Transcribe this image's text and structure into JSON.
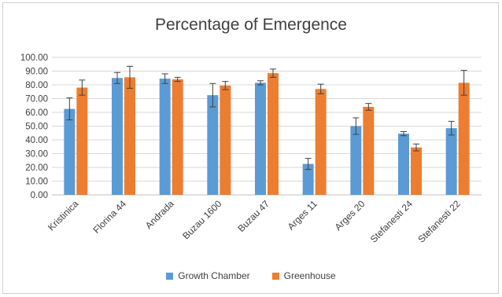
{
  "chart_data": {
    "type": "bar",
    "title": "Percentage of Emergence",
    "categories": [
      "Kristinica",
      "Florina 44",
      "Andrada",
      "Buzau 1600",
      "Buzau 47",
      "Arges 11",
      "Arges 20",
      "Stefanesti 24",
      "Stefanesti 22"
    ],
    "series": [
      {
        "name": "Growth Chamber",
        "color": "#5b9bd5",
        "values": [
          62.5,
          85,
          84.5,
          72.5,
          81.5,
          22.5,
          50,
          44.5,
          48.5
        ],
        "errors": [
          8,
          4,
          3.5,
          8.5,
          1.5,
          4,
          6,
          1.5,
          5
        ]
      },
      {
        "name": "Greenhouse",
        "color": "#ed7d31",
        "values": [
          78,
          85.5,
          84,
          79.5,
          88.5,
          77,
          64,
          34.5,
          81.5
        ],
        "errors": [
          5.5,
          8,
          1.5,
          3,
          3,
          3.5,
          2.5,
          2.5,
          9
        ]
      }
    ],
    "yticks": [
      "0.00",
      "10.00",
      "20.00",
      "30.00",
      "40.00",
      "50.00",
      "60.00",
      "70.00",
      "80.00",
      "90.00",
      "100.00"
    ],
    "ylim": [
      0,
      100
    ],
    "grid": true,
    "legend": "bottom"
  }
}
